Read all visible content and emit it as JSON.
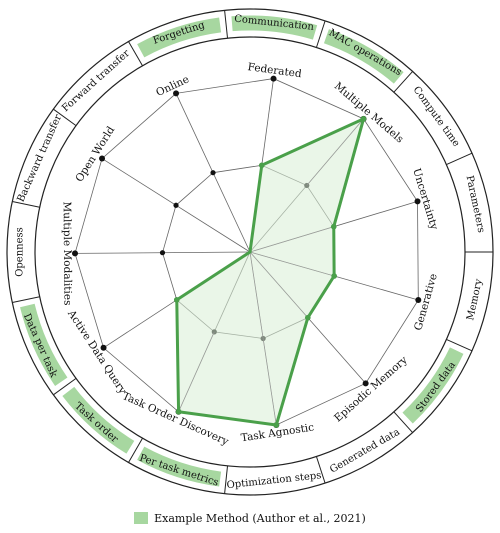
{
  "outer_ring": [
    "Forgetting",
    "Communication",
    "MAC operations",
    "Compute time",
    "Parameters",
    "Memory",
    "Stored data",
    "Generated data",
    "Optimization steps",
    "Per task metrics",
    "Task order",
    "Data per task",
    "Openness",
    "Backward transfer",
    "Forward transfer"
  ],
  "highlighted_outer": [
    "Forgetting",
    "Communication",
    "MAC operations",
    "Stored data",
    "Task order",
    "Per task metrics",
    "Data per task"
  ],
  "axes": [
    "Online",
    "Federated",
    "Multiple Models",
    "Uncertainty",
    "Generative",
    "Episodic Memory",
    "Task Agnostic",
    "Task Order Discovery",
    "Active Data Query",
    "Multiple Modalities",
    "Open World"
  ],
  "method": {
    "name": "Example Method (Author et al., 2021)",
    "values": [
      0.0,
      0.5,
      1.0,
      0.5,
      0.5,
      0.5,
      1.0,
      1.0,
      0.5,
      0.0,
      0.0
    ],
    "reference_values": [
      0.0,
      0.0,
      0.5,
      0.0,
      0.0,
      0.0,
      0.0,
      0.5,
      0.0,
      0.0,
      0.0
    ]
  },
  "colors": {
    "method_line": "#4aa04a",
    "method_fill": "#d9efd5",
    "highlight_arc": "#a7d7a0",
    "grid": "#666666"
  }
}
